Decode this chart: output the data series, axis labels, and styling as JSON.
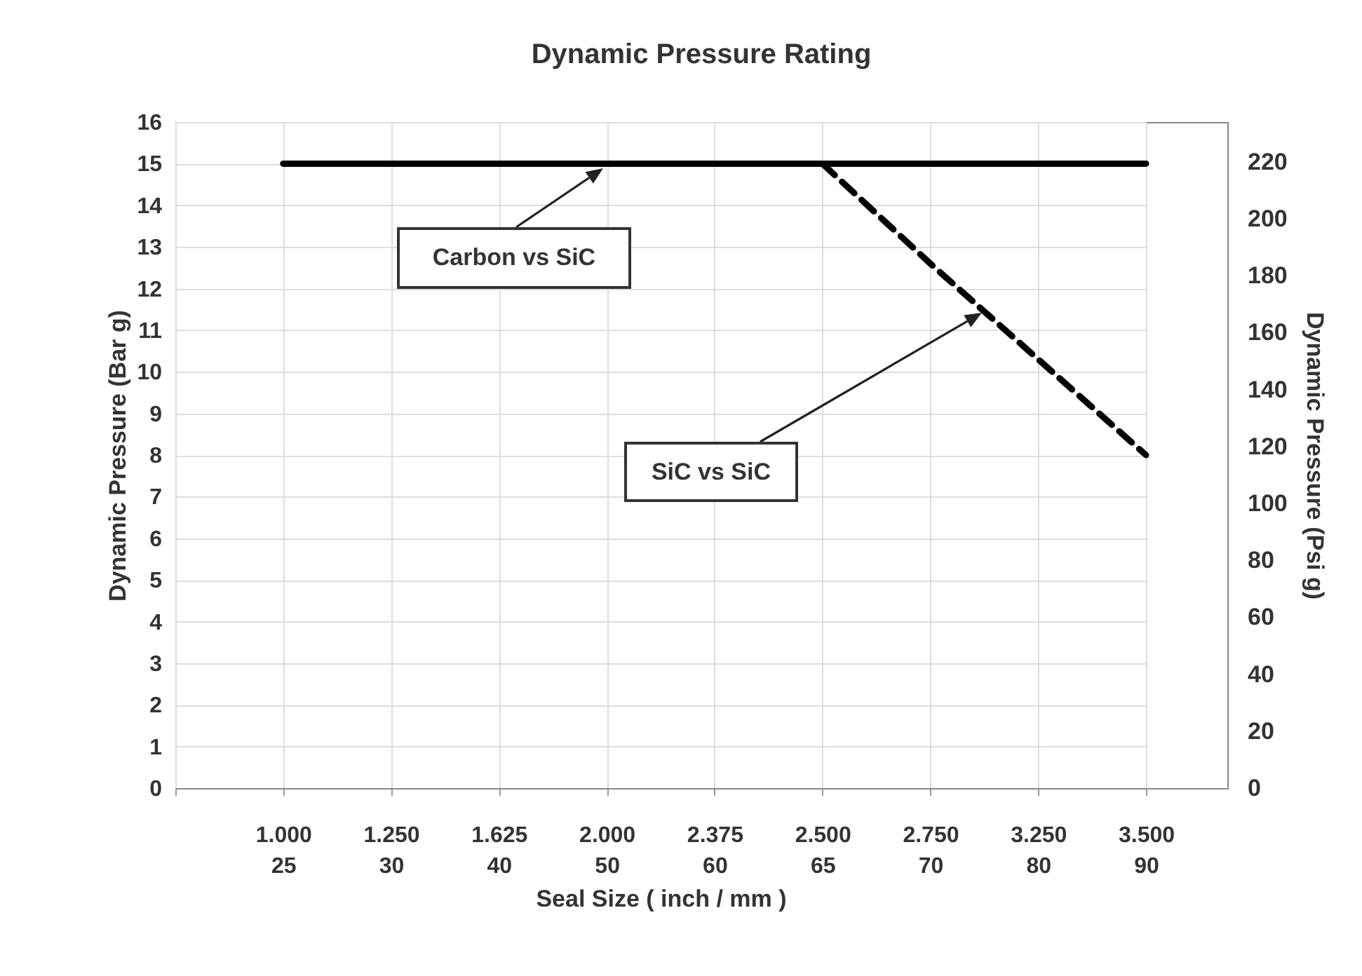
{
  "chart_data": {
    "type": "line",
    "title": "Dynamic Pressure Rating",
    "xlabel": "Seal Size ( inch / mm )",
    "ylabel": "Dynamic Pressure (Bar g)",
    "y2label": "Dynamic Pressure (Psi g)",
    "categories": [
      null,
      "1.000\n25",
      "1.250\n30",
      "1.625\n40",
      "2.000\n50",
      "2.375\n60",
      "2.500\n65",
      "2.750\n70",
      "3.250\n80",
      "3.500\n90"
    ],
    "series": [
      {
        "color": "#000000",
        "line_style": "solid",
        "values": [
          null,
          15,
          15,
          15,
          15,
          15,
          15,
          15,
          15,
          15
        ]
      },
      {
        "color": "#000000",
        "line_style": "dashed",
        "values": [
          null,
          null,
          null,
          null,
          null,
          null,
          15,
          12.6,
          10.3,
          8
        ]
      }
    ],
    "ylim": [
      0,
      16
    ],
    "yticks": [
      0,
      1,
      2,
      3,
      4,
      5,
      6,
      7,
      8,
      9,
      10,
      11,
      12,
      13,
      14,
      15,
      16
    ],
    "y2lim": [
      0,
      234
    ],
    "y2ticks": [
      0,
      20,
      40,
      60,
      80,
      100,
      120,
      140,
      160,
      180,
      200,
      220
    ],
    "grid": true,
    "annotations": [
      "Carbon vs SiC",
      "SiC vs SiC"
    ]
  }
}
